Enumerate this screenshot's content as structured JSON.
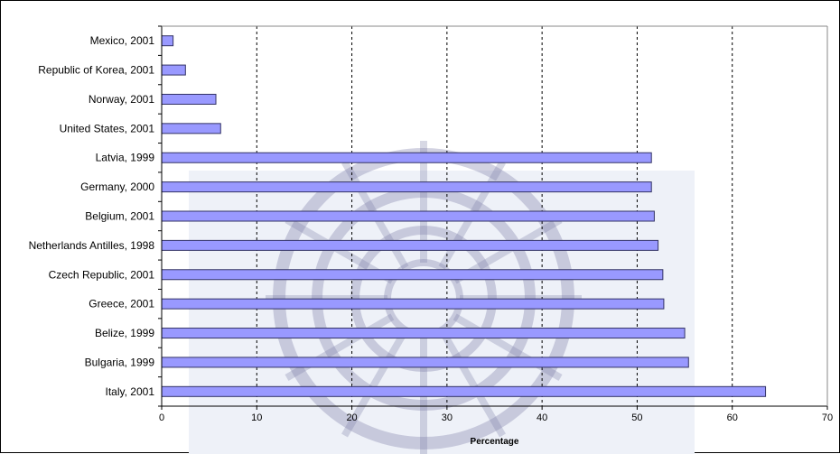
{
  "chart_data": {
    "type": "bar",
    "orientation": "horizontal",
    "categories": [
      "Mexico, 2001",
      "Republic of Korea, 2001",
      "Norway, 2001",
      "United States, 2001",
      "Latvia, 1999",
      "Germany, 2000",
      "Belgium, 2001",
      "Netherlands Antilles, 1998",
      "Czech Republic, 2001",
      "Greece, 2001",
      "Belize, 1999",
      "Bulgaria, 1999",
      "Italy, 2001"
    ],
    "values": [
      1.2,
      2.5,
      5.7,
      6.2,
      51.5,
      51.5,
      51.8,
      52.2,
      52.7,
      52.8,
      55.0,
      55.4,
      63.5
    ],
    "xlabel": "Percentage",
    "ylabel": "",
    "xlim": [
      0,
      70
    ],
    "xticks": [
      0,
      10,
      20,
      30,
      40,
      50,
      60,
      70
    ],
    "grid": "vertical dashed",
    "legend": "none",
    "colors": {
      "bar_fill": "#9999ff",
      "bar_stroke": "#333366",
      "grid": "#000000",
      "watermark": "#7d7fa8"
    }
  }
}
